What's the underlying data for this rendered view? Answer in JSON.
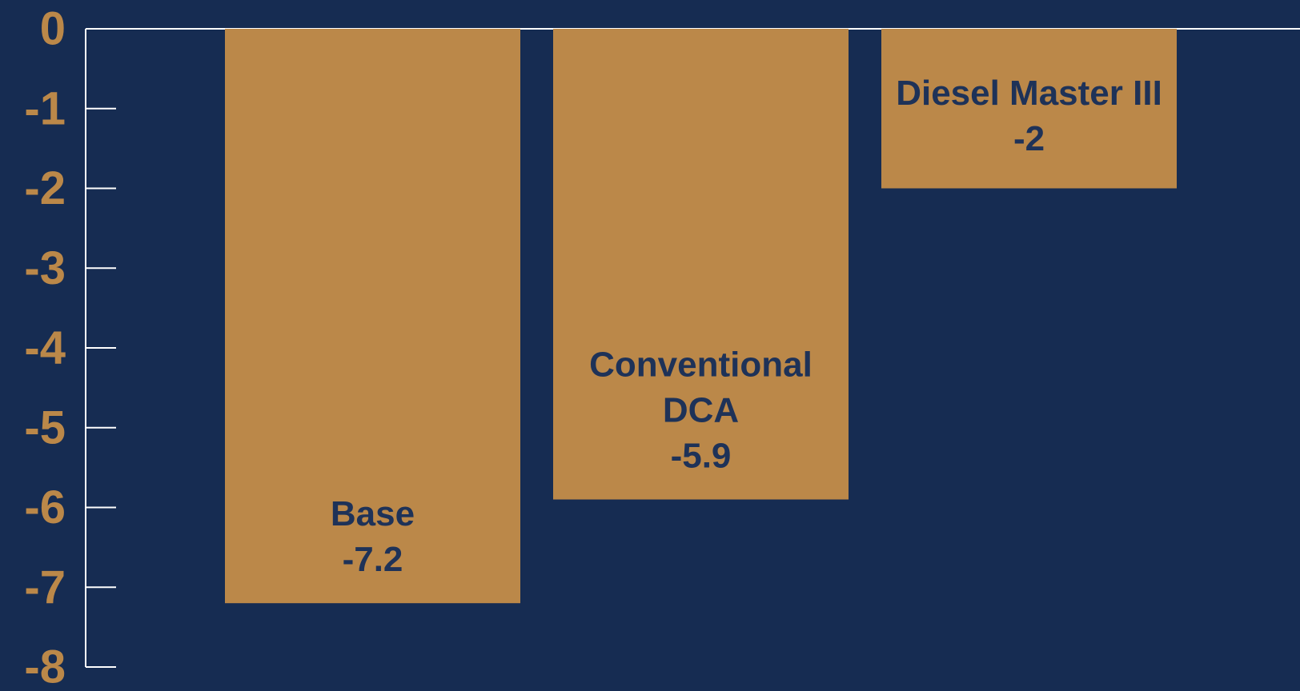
{
  "colors": {
    "background": "#162c52",
    "bar": "#bb8849",
    "tick_label": "#bb8849",
    "axis": "#ffffff",
    "bar_label": "#1e3258"
  },
  "chart_data": {
    "type": "bar",
    "title": "",
    "xlabel": "",
    "ylabel": "",
    "ylim": [
      -8,
      0
    ],
    "yticks": [
      0,
      -1,
      -2,
      -3,
      -4,
      -5,
      -6,
      -7,
      -8
    ],
    "ytick_labels": [
      "0",
      "-1",
      "-2",
      "-3",
      "-4",
      "-5",
      "-6",
      "-7",
      "-8"
    ],
    "categories": [
      "Base",
      "Conventional DCA",
      "Diesel Master III"
    ],
    "category_label_lines": [
      [
        "Base"
      ],
      [
        "Conventional",
        "DCA"
      ],
      [
        "Diesel Master III"
      ]
    ],
    "values": [
      -7.2,
      -5.9,
      -2
    ],
    "value_labels": [
      "-7.2",
      "-5.9",
      "-2"
    ],
    "grid": false,
    "legend": "none"
  }
}
